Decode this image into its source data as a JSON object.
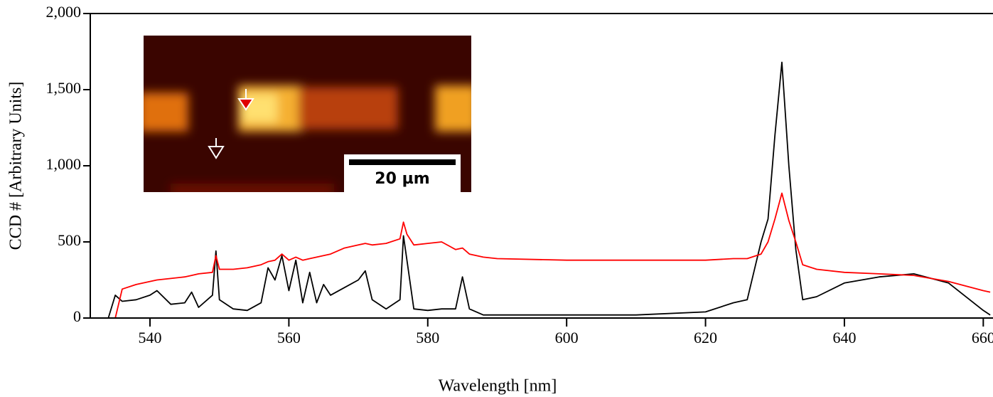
{
  "chart_data": {
    "type": "line",
    "xlabel": "Wavelength [nm]",
    "ylabel": "CCD # [Arbitrary Units]",
    "inset_label": "20 µm",
    "xlim": [
      531.4,
      661.4
    ],
    "ylim": [
      0,
      2000
    ],
    "xticks": [
      540,
      560,
      580,
      600,
      620,
      640,
      660
    ],
    "yticks": [
      0,
      500,
      {
        "value": 1000,
        "label": "1,000"
      },
      {
        "value": 1500,
        "label": "1,500"
      },
      {
        "value": 2000,
        "label": "2,000"
      }
    ],
    "x": [
      534,
      535,
      536,
      538,
      540,
      541,
      543,
      545,
      546,
      547,
      549,
      549.5,
      550,
      552,
      554,
      556,
      557,
      558,
      559,
      560,
      561,
      562,
      563,
      564,
      565,
      566,
      568,
      570,
      571,
      572,
      574,
      576,
      576.5,
      577,
      578,
      580,
      582,
      584,
      585,
      586,
      588,
      590,
      600,
      610,
      620,
      624,
      626,
      628,
      629,
      630,
      631,
      632,
      633,
      634,
      636,
      640,
      645,
      650,
      655,
      660,
      661
    ],
    "series": [
      {
        "color": "#000000",
        "values": [
          0,
          150,
          110,
          120,
          150,
          180,
          90,
          100,
          170,
          70,
          150,
          440,
          120,
          60,
          50,
          100,
          330,
          250,
          410,
          180,
          380,
          100,
          300,
          100,
          220,
          150,
          200,
          250,
          310,
          120,
          60,
          120,
          540,
          380,
          60,
          50,
          60,
          60,
          270,
          60,
          20,
          20,
          20,
          20,
          40,
          100,
          120,
          500,
          650,
          1200,
          1680,
          1000,
          450,
          120,
          140,
          230,
          270,
          290,
          230,
          50,
          20
        ]
      },
      {
        "color": "#ff0000",
        "values": [
          null,
          0,
          190,
          220,
          240,
          250,
          260,
          270,
          280,
          290,
          300,
          410,
          320,
          320,
          330,
          350,
          370,
          380,
          420,
          380,
          400,
          380,
          390,
          400,
          410,
          420,
          460,
          480,
          490,
          480,
          490,
          520,
          630,
          550,
          480,
          490,
          500,
          450,
          460,
          420,
          400,
          390,
          380,
          380,
          380,
          390,
          390,
          420,
          500,
          650,
          820,
          640,
          500,
          350,
          320,
          300,
          290,
          280,
          240,
          180,
          170
        ]
      }
    ]
  }
}
